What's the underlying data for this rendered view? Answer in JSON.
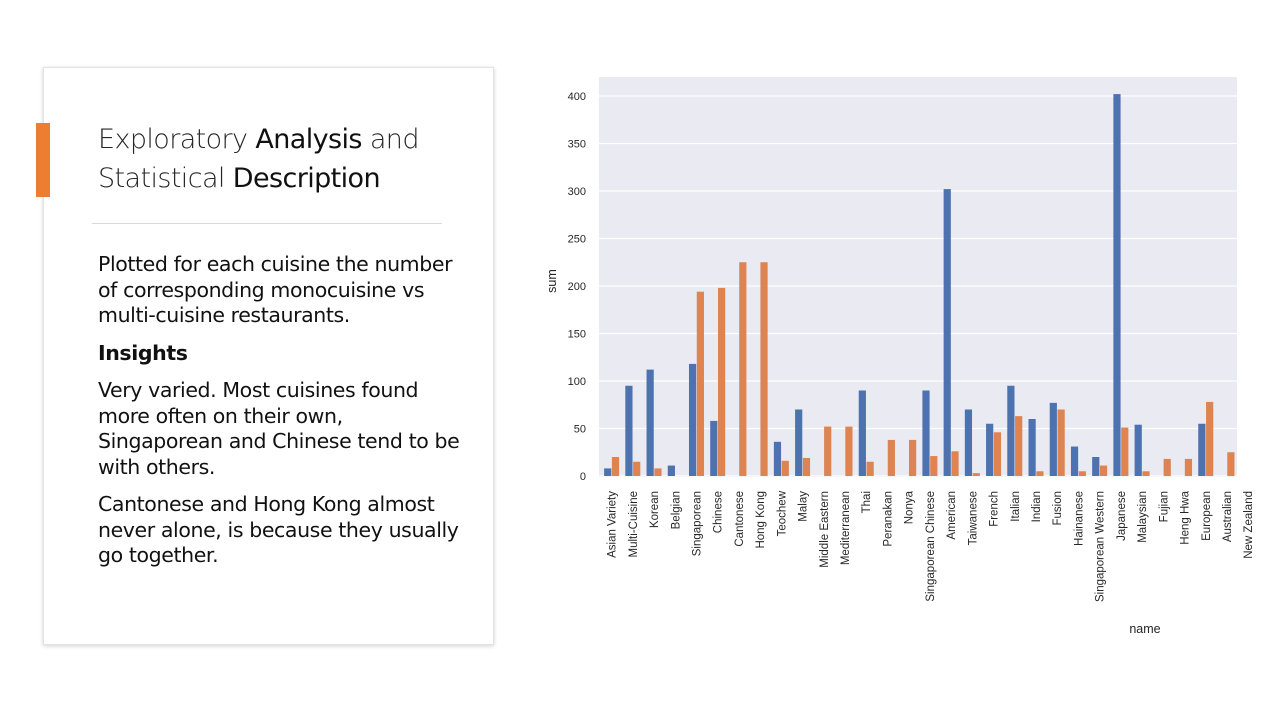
{
  "slide": {
    "title_parts": [
      {
        "text": "Exploratory ",
        "emph": false
      },
      {
        "text": "Analysis",
        "emph": true
      },
      {
        "text": " and Statistical ",
        "emph": false
      },
      {
        "text": "Description",
        "emph": true
      }
    ],
    "paragraph1": "Plotted for each cuisine the number of corresponding monocuisine vs multi-cuisine restaurants.",
    "insights_heading": "Insights",
    "paragraph2": "Very varied. Most cuisines found more often on their own, Singaporean and Chinese tend to be with others.",
    "paragraph3": "Cantonese and Hong Kong almost never alone, is because they usually go together.",
    "accent_color": "#ED7D31"
  },
  "chart_data": {
    "type": "bar",
    "xlabel": "name",
    "ylabel": "sum",
    "ylim": [
      0,
      420
    ],
    "yticks": [
      0,
      50,
      100,
      150,
      200,
      250,
      300,
      350,
      400
    ],
    "grid": true,
    "background": "#EAEAF2",
    "categories": [
      "Asian Variety",
      "Multi-Cuisine",
      "Korean",
      "Belgian",
      "Singaporean",
      "Chinese",
      "Cantonese",
      "Hong Kong",
      "Teochew",
      "Malay",
      "Middle Eastern",
      "Mediterranean",
      "Thai",
      "Peranakan",
      "Nonya",
      "Singaporean Chinese",
      "American",
      "Taiwanese",
      "French",
      "Italian",
      "Indian",
      "Fusion",
      "Hainanese",
      "Singaporean Western",
      "Japanese",
      "Malaysian",
      "Fujian",
      "Heng Hwa",
      "European",
      "Australian",
      "New Zealand"
    ],
    "series": [
      {
        "color": "#4C72B0",
        "values": [
          8,
          95,
          112,
          11,
          118,
          58,
          0,
          0,
          36,
          70,
          0,
          0,
          90,
          0,
          0,
          90,
          302,
          70,
          55,
          95,
          60,
          77,
          31,
          20,
          402,
          54,
          0,
          0,
          55,
          0,
          0
        ]
      },
      {
        "color": "#DD8452",
        "values": [
          20,
          15,
          8,
          0,
          194,
          198,
          225,
          225,
          16,
          19,
          52,
          52,
          15,
          38,
          38,
          21,
          26,
          3,
          46,
          63,
          5,
          70,
          5,
          11,
          51,
          5,
          18,
          18,
          78,
          25,
          0
        ]
      }
    ]
  }
}
